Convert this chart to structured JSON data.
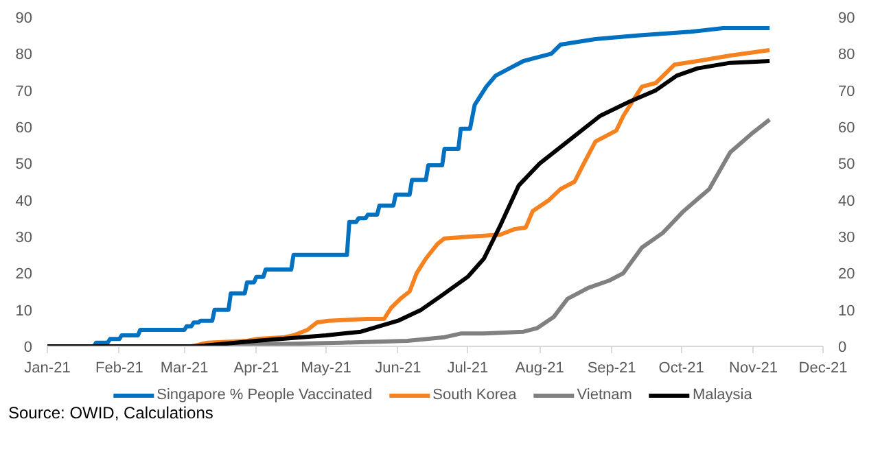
{
  "chart_data": {
    "type": "line",
    "annotations": [
      "Source: OWID, Calculations"
    ],
    "xlim": [
      "2021-01-01",
      "2021-12-01"
    ],
    "xticks": [
      {
        "value": "2021-01-01",
        "label": "Jan-21"
      },
      {
        "value": "2021-02-01",
        "label": "Feb-21"
      },
      {
        "value": "2021-03-01",
        "label": "Mar-21"
      },
      {
        "value": "2021-04-01",
        "label": "Apr-21"
      },
      {
        "value": "2021-05-01",
        "label": "May-21"
      },
      {
        "value": "2021-06-01",
        "label": "Jun-21"
      },
      {
        "value": "2021-07-01",
        "label": "Jul-21"
      },
      {
        "value": "2021-08-01",
        "label": "Aug-21"
      },
      {
        "value": "2021-09-01",
        "label": "Sep-21"
      },
      {
        "value": "2021-10-01",
        "label": "Oct-21"
      },
      {
        "value": "2021-11-01",
        "label": "Nov-21"
      },
      {
        "value": "2021-12-01",
        "label": "Dec-21"
      }
    ],
    "ylim": [
      0,
      90
    ],
    "yticks": [
      0,
      10,
      20,
      30,
      40,
      50,
      60,
      70,
      80,
      90
    ],
    "y2lim": [
      0,
      90
    ],
    "y2ticks": [
      0,
      10,
      20,
      30,
      40,
      50,
      60,
      70,
      80,
      90
    ],
    "grid": false,
    "legend": "bottom",
    "marker": "none",
    "line_style": "solid",
    "series": [
      {
        "name": "Singapore % People Vaccinated",
        "color": "#0070c0",
        "x": [
          "2021-01-01",
          "2021-01-21",
          "2021-01-22",
          "2021-01-27",
          "2021-01-28",
          "2021-02-01",
          "2021-02-02",
          "2021-02-09",
          "2021-02-10",
          "2021-03-01",
          "2021-03-02",
          "2021-03-04",
          "2021-03-05",
          "2021-03-07",
          "2021-03-08",
          "2021-03-13",
          "2021-03-14",
          "2021-03-20",
          "2021-03-21",
          "2021-03-27",
          "2021-03-28",
          "2021-03-31",
          "2021-04-01",
          "2021-04-04",
          "2021-04-05",
          "2021-04-16",
          "2021-04-17",
          "2021-05-10",
          "2021-05-11",
          "2021-05-14",
          "2021-05-15",
          "2021-05-18",
          "2021-05-19",
          "2021-05-23",
          "2021-05-24",
          "2021-05-30",
          "2021-05-31",
          "2021-06-06",
          "2021-06-07",
          "2021-06-13",
          "2021-06-14",
          "2021-06-20",
          "2021-06-21",
          "2021-06-27",
          "2021-06-28",
          "2021-07-02",
          "2021-07-04",
          "2021-07-06",
          "2021-07-09",
          "2021-07-13",
          "2021-07-19",
          "2021-07-25",
          "2021-07-31",
          "2021-08-06",
          "2021-08-10",
          "2021-08-25",
          "2021-09-12",
          "2021-10-05",
          "2021-10-19",
          "2021-11-08"
        ],
        "values": [
          0,
          0,
          1,
          1,
          2,
          2,
          3,
          3,
          4.5,
          4.5,
          5.5,
          5.5,
          6.5,
          6.5,
          7,
          7,
          10,
          10,
          14.5,
          14.5,
          17.5,
          17.5,
          19,
          19,
          21,
          21,
          25,
          25,
          34,
          34,
          35,
          35,
          36,
          36,
          38.5,
          38.5,
          41.5,
          41.5,
          45.5,
          45.5,
          49.5,
          49.5,
          54,
          54,
          59.5,
          59.5,
          66,
          68,
          71,
          74,
          76,
          78,
          79,
          80,
          82.5,
          84,
          85,
          86,
          87,
          87
        ]
      },
      {
        "name": "South Korea",
        "color": "#f5821f",
        "x": [
          "2021-03-04",
          "2021-03-11",
          "2021-03-28",
          "2021-04-01",
          "2021-04-13",
          "2021-04-17",
          "2021-04-23",
          "2021-04-27",
          "2021-05-02",
          "2021-05-19",
          "2021-05-26",
          "2021-05-29",
          "2021-06-02",
          "2021-06-06",
          "2021-06-09",
          "2021-06-13",
          "2021-06-18",
          "2021-06-21",
          "2021-07-02",
          "2021-07-15",
          "2021-07-21",
          "2021-07-26",
          "2021-07-29",
          "2021-08-05",
          "2021-08-10",
          "2021-08-16",
          "2021-08-20",
          "2021-08-25",
          "2021-09-03",
          "2021-09-06",
          "2021-09-14",
          "2021-09-20",
          "2021-09-28",
          "2021-10-08",
          "2021-10-22",
          "2021-11-08"
        ],
        "values": [
          0,
          1,
          1.5,
          2,
          2.5,
          3,
          4.5,
          6.5,
          7,
          7.5,
          7.5,
          10.5,
          13,
          15,
          20,
          24,
          28,
          29.5,
          30,
          30.5,
          32,
          32.5,
          37,
          40,
          43,
          45,
          50,
          56,
          59,
          63,
          71,
          72,
          77,
          78,
          79.5,
          81
        ]
      },
      {
        "name": "Vietnam",
        "color": "#808080",
        "x": [
          "2021-03-08",
          "2021-04-02",
          "2021-05-08",
          "2021-06-05",
          "2021-06-21",
          "2021-06-28",
          "2021-07-08",
          "2021-07-25",
          "2021-07-31",
          "2021-08-07",
          "2021-08-13",
          "2021-08-22",
          "2021-08-31",
          "2021-09-06",
          "2021-09-14",
          "2021-09-23",
          "2021-10-02",
          "2021-10-13",
          "2021-10-22",
          "2021-10-31",
          "2021-11-08"
        ],
        "values": [
          0,
          0.5,
          1,
          1.5,
          2.5,
          3.5,
          3.5,
          4,
          5,
          8,
          13,
          16,
          18,
          20,
          27,
          31,
          37,
          43,
          53,
          58,
          62
        ]
      },
      {
        "name": "Malaysia",
        "color": "#000000",
        "x": [
          "2021-01-01",
          "2021-03-06",
          "2021-04-01",
          "2021-05-01",
          "2021-05-16",
          "2021-06-01",
          "2021-06-11",
          "2021-06-20",
          "2021-07-01",
          "2021-07-08",
          "2021-07-15",
          "2021-07-23",
          "2021-08-01",
          "2021-08-13",
          "2021-08-27",
          "2021-09-09",
          "2021-09-20",
          "2021-09-29",
          "2021-10-08",
          "2021-10-22",
          "2021-11-08"
        ],
        "values": [
          0,
          0,
          1.5,
          3,
          4,
          7,
          10,
          14,
          19,
          24,
          33,
          44,
          50,
          56,
          63,
          67,
          70,
          74,
          76,
          77.5,
          78
        ]
      }
    ]
  }
}
